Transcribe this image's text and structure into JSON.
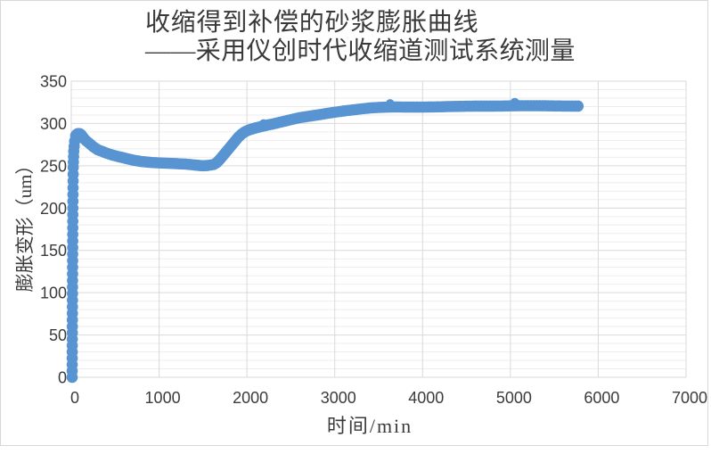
{
  "title": {
    "line1": "收缩得到补偿的砂浆膨胀曲线",
    "line2": "——采用仪创时代收缩道测试系统测量"
  },
  "axes": {
    "x": {
      "title": "时间/min",
      "tick_labels": [
        "0",
        "1000",
        "2000",
        "3000",
        "4000",
        "5000",
        "6000",
        "7000"
      ]
    },
    "y": {
      "title": "膨胀变形（um）",
      "tick_labels": [
        "0",
        "50",
        "100",
        "150",
        "200",
        "250",
        "300",
        "350"
      ]
    }
  },
  "style": {
    "series_color": "#5894D1",
    "major_grid": "#D9D9D9",
    "minor_grid": "#EDEDED",
    "frame_border": "#D8D8D8",
    "title_text": "#3a3a3a",
    "tick_text": "#3b3b3b"
  },
  "chart_data": {
    "type": "scatter",
    "title": "收缩得到补偿的砂浆膨胀曲线——采用仪创时代收缩道测试系统测量",
    "xlabel": "时间/min",
    "ylabel": "膨胀变形（um）",
    "xlim": [
      0,
      7000
    ],
    "ylim": [
      0,
      350
    ],
    "x_major_unit": 1000,
    "y_major_unit": 50,
    "y_minor_unit": 10,
    "grid": "horizontal major+minor, vertical major",
    "legend": "none",
    "series": [
      {
        "name": "膨胀变形",
        "marker": "circle",
        "color": "#5894D1",
        "points": [
          [
            10,
            0
          ],
          [
            12,
            60
          ],
          [
            15,
            130
          ],
          [
            18,
            200
          ],
          [
            22,
            248
          ],
          [
            28,
            267
          ],
          [
            38,
            279
          ],
          [
            50,
            285.5
          ],
          [
            60,
            287
          ],
          [
            75,
            288
          ],
          [
            95,
            288
          ],
          [
            110,
            287
          ],
          [
            125,
            285
          ],
          [
            150,
            281.5
          ],
          [
            175,
            279
          ],
          [
            200,
            277
          ],
          [
            250,
            272.5
          ],
          [
            300,
            269
          ],
          [
            350,
            267
          ],
          [
            400,
            265
          ],
          [
            450,
            263.2
          ],
          [
            500,
            261.8
          ],
          [
            550,
            260.5
          ],
          [
            600,
            259.3
          ],
          [
            650,
            258
          ],
          [
            700,
            256.8
          ],
          [
            750,
            255.8
          ],
          [
            800,
            255
          ],
          [
            850,
            254.5
          ],
          [
            900,
            254
          ],
          [
            1000,
            253.4
          ],
          [
            1100,
            253
          ],
          [
            1200,
            252.5
          ],
          [
            1300,
            252
          ],
          [
            1400,
            251
          ],
          [
            1450,
            250.4
          ],
          [
            1500,
            250
          ],
          [
            1550,
            250.3
          ],
          [
            1620,
            251.5
          ],
          [
            1660,
            254
          ],
          [
            1700,
            258.5
          ],
          [
            1740,
            263.5
          ],
          [
            1780,
            268.5
          ],
          [
            1820,
            273.5
          ],
          [
            1860,
            278.5
          ],
          [
            1900,
            283.5
          ],
          [
            1940,
            287.5
          ],
          [
            1980,
            290.3
          ],
          [
            2020,
            292.2
          ],
          [
            2060,
            293.6
          ],
          [
            2100,
            294.8
          ],
          [
            2150,
            296
          ],
          [
            2200,
            297.3
          ],
          [
            2250,
            298.5
          ],
          [
            2300,
            299.5
          ],
          [
            2400,
            302
          ],
          [
            2500,
            304.5
          ],
          [
            2600,
            306.8
          ],
          [
            2700,
            308.5
          ],
          [
            2800,
            310
          ],
          [
            2900,
            311.7
          ],
          [
            3000,
            313.3
          ],
          [
            3100,
            314.7
          ],
          [
            3200,
            316
          ],
          [
            3300,
            317.2
          ],
          [
            3400,
            318.3
          ],
          [
            3500,
            319
          ],
          [
            3600,
            319.4
          ],
          [
            3700,
            319.5
          ],
          [
            3800,
            319.4
          ],
          [
            3900,
            319.4
          ],
          [
            4000,
            319.4
          ],
          [
            4100,
            319.5
          ],
          [
            4200,
            319.7
          ],
          [
            4300,
            320
          ],
          [
            4400,
            320.2
          ],
          [
            4500,
            320.4
          ],
          [
            4600,
            320.5
          ],
          [
            4700,
            320.5
          ],
          [
            4800,
            320.5
          ],
          [
            4900,
            320.6
          ],
          [
            5000,
            320.8
          ],
          [
            5100,
            321
          ],
          [
            5200,
            321
          ],
          [
            5300,
            321
          ],
          [
            5400,
            320.9
          ],
          [
            5500,
            320.7
          ],
          [
            5600,
            320.6
          ],
          [
            5700,
            320.5
          ],
          [
            5770,
            320.5
          ]
        ]
      }
    ],
    "outlier_points": [
      [
        2190,
        299.8
      ],
      [
        3630,
        323.5
      ],
      [
        5050,
        325
      ]
    ]
  }
}
